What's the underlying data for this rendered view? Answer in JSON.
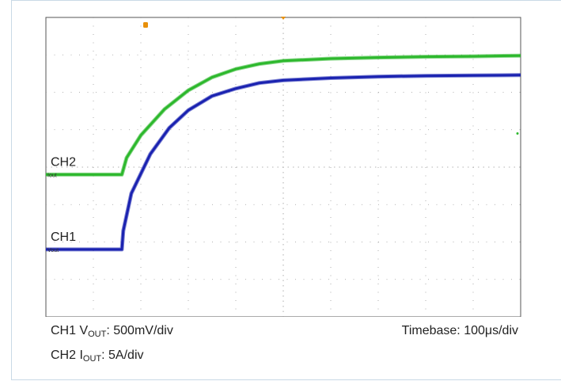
{
  "chart_data": {
    "type": "line",
    "title": "",
    "grid": true,
    "x_divisions": 10,
    "y_divisions": 8,
    "x_unit": "div",
    "series": [
      {
        "name": "CH2",
        "color": "#2db82d",
        "x": [
          0,
          1.0,
          1.6,
          1.7,
          2.0,
          2.5,
          3.0,
          3.5,
          4.0,
          4.5,
          5.0,
          6.0,
          7.0,
          8.0,
          9.0,
          10.0
        ],
        "y": [
          -0.2,
          -0.2,
          -0.2,
          0.25,
          0.85,
          1.55,
          2.05,
          2.4,
          2.62,
          2.76,
          2.84,
          2.9,
          2.93,
          2.95,
          2.96,
          2.98
        ]
      },
      {
        "name": "CH1",
        "color": "#1a22b0",
        "x": [
          0,
          1.0,
          1.6,
          1.63,
          1.8,
          2.2,
          2.6,
          3.0,
          3.5,
          4.0,
          4.5,
          5.0,
          6.0,
          7.0,
          8.0,
          9.0,
          10.0
        ],
        "y": [
          -2.2,
          -2.2,
          -2.2,
          -1.7,
          -0.7,
          0.35,
          1.05,
          1.52,
          1.9,
          2.1,
          2.25,
          2.32,
          2.38,
          2.42,
          2.44,
          2.45,
          2.46
        ]
      }
    ],
    "channel_labels": [
      {
        "text": "CH2",
        "marker": "Iout",
        "level": -0.2
      },
      {
        "text": "CH1",
        "marker": "Vout",
        "level": -2.2
      }
    ],
    "trigger_marker_x": 5.0
  },
  "captions": {
    "ch1_prefix": "CH1 V",
    "ch1_sub": "OUT",
    "ch1_value": ": 500mV/div",
    "ch2_prefix": "CH2 I",
    "ch2_sub": "OUT",
    "ch2_value": ": 5A/div",
    "timebase": "Timebase: 100μs/div"
  },
  "colors": {
    "grid_box": "#555555",
    "dots": "#9a9a9a",
    "trigger": "#e8900a"
  }
}
